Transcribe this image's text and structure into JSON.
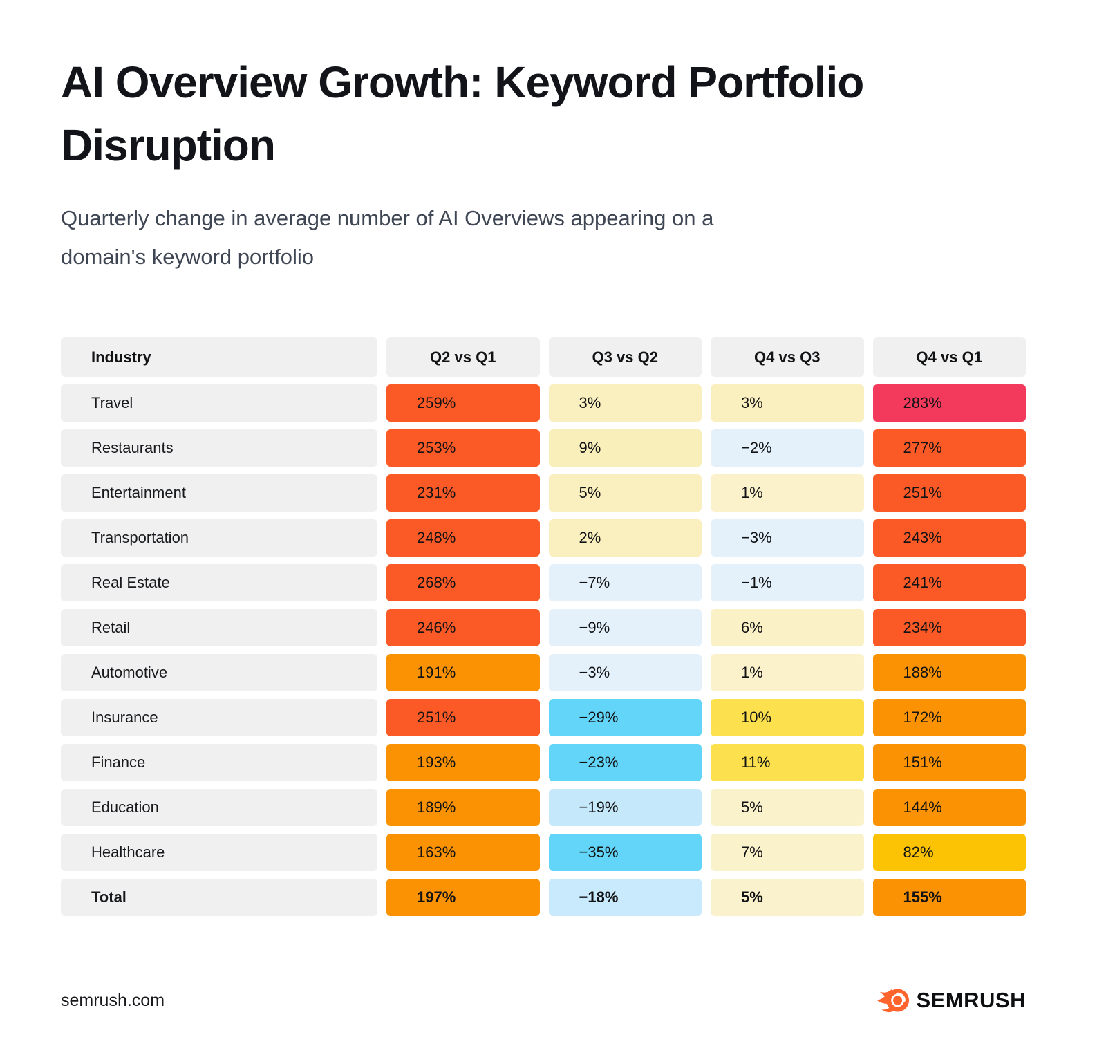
{
  "header": {
    "title": "AI Overview Growth: Keyword Portfolio Disruption",
    "subtitle": "Quarterly change in average number of AI Overviews appearing on a domain's keyword portfolio"
  },
  "table": {
    "industry_header": "Industry"
  },
  "chart_data": {
    "type": "heatmap",
    "title": "AI Overview Growth: Keyword Portfolio Disruption",
    "subtitle": "Quarterly change in average number of AI Overviews appearing on a domain's keyword portfolio",
    "columns": [
      "Q2 vs Q1",
      "Q3 vs Q2",
      "Q4 vs Q3",
      "Q4 vs Q1"
    ],
    "unit": "percent change",
    "legend_position": "none",
    "rows": [
      {
        "industry": "Travel",
        "values": [
          259,
          3,
          3,
          283
        ],
        "labels": [
          "259%",
          "3%",
          "3%",
          "283%"
        ],
        "colors": [
          "#fb5a27",
          "#faf0bf",
          "#faf0bf",
          "#f43a5c"
        ],
        "bold": false
      },
      {
        "industry": "Restaurants",
        "values": [
          253,
          9,
          -2,
          277
        ],
        "labels": [
          "253%",
          "9%",
          "−2%",
          "277%"
        ],
        "colors": [
          "#fb5a27",
          "#f9efba",
          "#e4f1fb",
          "#fb5a27"
        ],
        "bold": false
      },
      {
        "industry": "Entertainment",
        "values": [
          231,
          5,
          1,
          251
        ],
        "labels": [
          "231%",
          "5%",
          "1%",
          "251%"
        ],
        "colors": [
          "#fb5a27",
          "#faf0bf",
          "#fbf2cb",
          "#fb5a27"
        ],
        "bold": false
      },
      {
        "industry": "Transportation",
        "values": [
          248,
          2,
          -3,
          243
        ],
        "labels": [
          "248%",
          "2%",
          "−3%",
          "243%"
        ],
        "colors": [
          "#fb5a27",
          "#faf0bf",
          "#e4f1fb",
          "#fb5a27"
        ],
        "bold": false
      },
      {
        "industry": "Real Estate",
        "values": [
          268,
          -7,
          -1,
          241
        ],
        "labels": [
          "268%",
          "−7%",
          "−1%",
          "241%"
        ],
        "colors": [
          "#fb5a27",
          "#e4f1fb",
          "#e4f1fb",
          "#fb5a27"
        ],
        "bold": false
      },
      {
        "industry": "Retail",
        "values": [
          246,
          -9,
          6,
          234
        ],
        "labels": [
          "246%",
          "−9%",
          "6%",
          "234%"
        ],
        "colors": [
          "#fb5a27",
          "#e4f1fb",
          "#faf1c6",
          "#fb5a27"
        ],
        "bold": false
      },
      {
        "industry": "Automotive",
        "values": [
          191,
          -3,
          1,
          188
        ],
        "labels": [
          "191%",
          "−3%",
          "1%",
          "188%"
        ],
        "colors": [
          "#fa9203",
          "#e4f1fb",
          "#fbf2cb",
          "#fa9203"
        ],
        "bold": false
      },
      {
        "industry": "Insurance",
        "values": [
          251,
          -29,
          10,
          172
        ],
        "labels": [
          "251%",
          "−29%",
          "10%",
          "172%"
        ],
        "colors": [
          "#fb5a27",
          "#63d5f8",
          "#fce04d",
          "#fa9203"
        ],
        "bold": false
      },
      {
        "industry": "Finance",
        "values": [
          193,
          -23,
          11,
          151
        ],
        "labels": [
          "193%",
          "−23%",
          "11%",
          "151%"
        ],
        "colors": [
          "#fa9203",
          "#63d5f8",
          "#fce04d",
          "#fa9203"
        ],
        "bold": false
      },
      {
        "industry": "Education",
        "values": [
          189,
          -19,
          5,
          144
        ],
        "labels": [
          "189%",
          "−19%",
          "5%",
          "144%"
        ],
        "colors": [
          "#fa9203",
          "#c5e9fb",
          "#faf2cb",
          "#fa9203"
        ],
        "bold": false
      },
      {
        "industry": "Healthcare",
        "values": [
          163,
          -35,
          7,
          82
        ],
        "labels": [
          "163%",
          "−35%",
          "7%",
          "82%"
        ],
        "colors": [
          "#fa9203",
          "#63d5f8",
          "#faf2cb",
          "#fcc204"
        ],
        "bold": false
      },
      {
        "industry": "Total",
        "values": [
          197,
          -18,
          5,
          155
        ],
        "labels": [
          "197%",
          "−18%",
          "5%",
          "155%"
        ],
        "colors": [
          "#fa9203",
          "#c9eafc",
          "#faf2cc",
          "#fa9203"
        ],
        "bold": true
      }
    ]
  },
  "footer": {
    "site": "semrush.com",
    "brand": "SEMRUSH"
  },
  "colors": {
    "header_cell_bg": "#f0f0f0",
    "max_increase": "#f43a5c",
    "strong_increase": "#fb5a27",
    "increase": "#fa9203",
    "moderate_increase": "#fcc204",
    "small_increase": "#fce04d",
    "slight_increase": "#faf0bf",
    "slight_decrease": "#e4f1fb",
    "decrease": "#c5e9fb",
    "strong_decrease": "#63d5f8",
    "brand_orange": "#ff642d"
  }
}
